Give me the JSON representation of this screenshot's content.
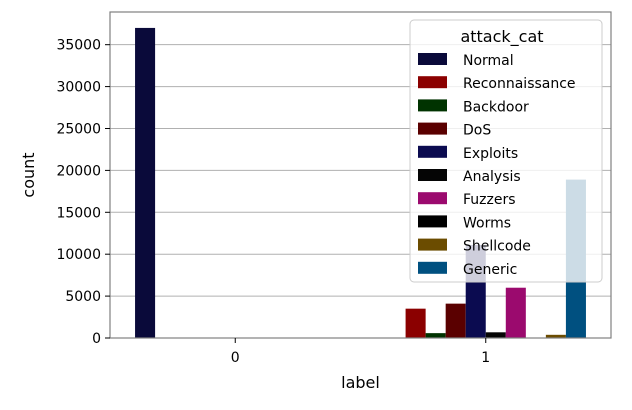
{
  "chart_data": {
    "type": "bar",
    "xlabel": "label",
    "ylabel": "count",
    "categories": [
      "0",
      "1"
    ],
    "ylim": [
      0,
      38900
    ],
    "yticks": [
      0,
      5000,
      10000,
      15000,
      20000,
      25000,
      30000,
      35000
    ],
    "ytick_labels": [
      "0",
      "5000",
      "10000",
      "15000",
      "20000",
      "25000",
      "30000",
      "35000"
    ],
    "grid": "y",
    "legend": {
      "title": "attack_cat",
      "placement": "top-right"
    },
    "series": [
      {
        "name": "Normal",
        "color": "#0a0a3a",
        "values": [
          37000,
          0
        ]
      },
      {
        "name": "Reconnaissance",
        "color": "#8b0000",
        "values": [
          0,
          3500
        ]
      },
      {
        "name": "Backdoor",
        "color": "#003300",
        "values": [
          0,
          580
        ]
      },
      {
        "name": "DoS",
        "color": "#5a0000",
        "values": [
          0,
          4100
        ]
      },
      {
        "name": "Exploits",
        "color": "#0b0b50",
        "values": [
          0,
          11100
        ]
      },
      {
        "name": "Analysis",
        "color": "#050505",
        "values": [
          0,
          680
        ]
      },
      {
        "name": "Fuzzers",
        "color": "#9b0a6e",
        "values": [
          0,
          6000
        ]
      },
      {
        "name": "Worms",
        "color": "#000000",
        "values": [
          0,
          44
        ]
      },
      {
        "name": "Shellcode",
        "color": "#6b4c00",
        "values": [
          0,
          380
        ]
      },
      {
        "name": "Generic",
        "color": "#005080",
        "values": [
          0,
          18900
        ]
      }
    ]
  }
}
